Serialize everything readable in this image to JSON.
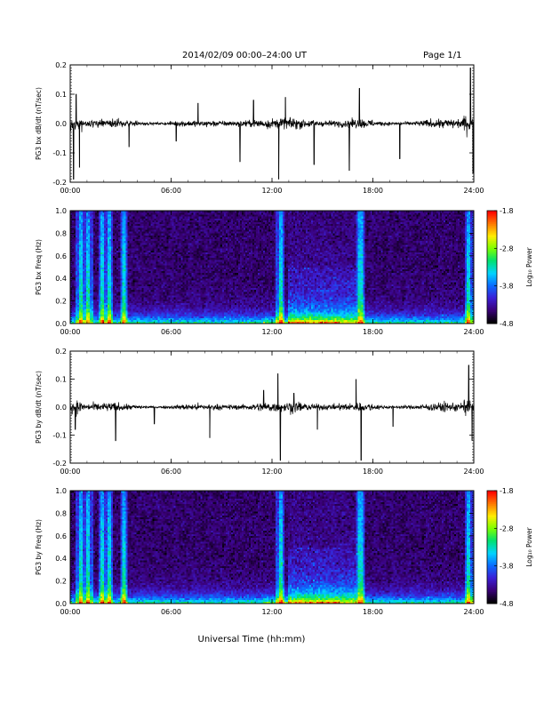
{
  "header": {
    "title": "2014/02/09  00:00–24:00 UT",
    "page": "Page 1/1"
  },
  "x_axis": {
    "label": "Universal Time (hh:mm)",
    "ticks": [
      "00:00",
      "06:00",
      "12:00",
      "18:00",
      "24:00"
    ],
    "range_hours": [
      0,
      24
    ]
  },
  "colorbar": {
    "label": "Log₁₀ Power",
    "ticks": [
      "-1.8",
      "-2.8",
      "-3.8",
      "-4.8"
    ],
    "range": [
      -4.8,
      -1.8
    ],
    "colors": [
      "#000000",
      "#3a0078",
      "#3b1fd6",
      "#0a6cff",
      "#00d4ff",
      "#00e070",
      "#7cff00",
      "#ffee00",
      "#ff7a00",
      "#ff0000"
    ]
  },
  "panels": [
    {
      "kind": "timeseries",
      "ylabel": "PG3 bx dB/dt (nT/sec)",
      "yticks": [
        "0.2",
        "0.1",
        "0.0",
        "-0.1",
        "-0.2"
      ],
      "ylim": [
        -0.2,
        0.2
      ]
    },
    {
      "kind": "spectrogram",
      "ylabel": "PG3 bx Freq (Hz)",
      "yticks": [
        "1.0",
        "0.8",
        "0.6",
        "0.4",
        "0.2",
        "0.0"
      ],
      "ylim": [
        0,
        1.0
      ]
    },
    {
      "kind": "timeseries",
      "ylabel": "PG3 by dB/dt (nT/sec)",
      "yticks": [
        "0.2",
        "0.1",
        "0.0",
        "-0.1",
        "-0.2"
      ],
      "ylim": [
        -0.2,
        0.2
      ]
    },
    {
      "kind": "spectrogram",
      "ylabel": "PG3 by Freq (Hz)",
      "yticks": [
        "1.0",
        "0.8",
        "0.6",
        "0.4",
        "0.2",
        "0.0"
      ],
      "ylim": [
        0,
        1.0
      ]
    }
  ],
  "chart_data": [
    {
      "type": "line",
      "xlabel": "Universal Time (hh:mm)",
      "ylabel": "PG3 bx dB/dt (nT/sec)",
      "xlim": [
        0,
        24
      ],
      "ylim": [
        -0.2,
        0.2
      ],
      "baseline": 0.0,
      "typical_amplitude": 0.03,
      "spikes": [
        {
          "x": 0.2,
          "y": -0.19
        },
        {
          "x": 0.35,
          "y": 0.1
        },
        {
          "x": 0.55,
          "y": -0.15
        },
        {
          "x": 3.5,
          "y": -0.08
        },
        {
          "x": 6.3,
          "y": -0.06
        },
        {
          "x": 7.6,
          "y": 0.07
        },
        {
          "x": 10.1,
          "y": -0.13
        },
        {
          "x": 10.9,
          "y": 0.08
        },
        {
          "x": 12.4,
          "y": -0.19
        },
        {
          "x": 12.8,
          "y": 0.09
        },
        {
          "x": 14.5,
          "y": -0.14
        },
        {
          "x": 16.6,
          "y": -0.16
        },
        {
          "x": 17.2,
          "y": 0.12
        },
        {
          "x": 19.6,
          "y": -0.12
        },
        {
          "x": 23.8,
          "y": 0.19
        },
        {
          "x": 23.95,
          "y": -0.17
        }
      ]
    },
    {
      "type": "heatmap",
      "xlabel": "Universal Time (hh:mm)",
      "ylabel": "PG3 bx Freq (Hz)",
      "xlim": [
        0,
        24
      ],
      "ylim": [
        0,
        1.0
      ],
      "zlabel": "Log₁₀ Power",
      "zlim": [
        -4.8,
        -1.8
      ],
      "background_power": -4.5,
      "low_freq_band_power": -3.0,
      "broadband_events_hours": [
        0.6,
        1.1,
        1.9,
        2.3,
        3.2,
        12.5,
        17.25,
        23.7
      ],
      "enhanced_interval_hours": [
        13,
        17
      ]
    },
    {
      "type": "line",
      "xlabel": "Universal Time (hh:mm)",
      "ylabel": "PG3 by dB/dt (nT/sec)",
      "xlim": [
        0,
        24
      ],
      "ylim": [
        -0.2,
        0.2
      ],
      "baseline": 0.0,
      "typical_amplitude": 0.03,
      "spikes": [
        {
          "x": 0.3,
          "y": -0.08
        },
        {
          "x": 2.7,
          "y": -0.12
        },
        {
          "x": 5.0,
          "y": -0.06
        },
        {
          "x": 8.3,
          "y": -0.11
        },
        {
          "x": 11.5,
          "y": 0.06
        },
        {
          "x": 12.35,
          "y": 0.12
        },
        {
          "x": 12.5,
          "y": -0.19
        },
        {
          "x": 13.3,
          "y": 0.05
        },
        {
          "x": 14.7,
          "y": -0.08
        },
        {
          "x": 17.0,
          "y": 0.1
        },
        {
          "x": 17.3,
          "y": -0.19
        },
        {
          "x": 19.2,
          "y": -0.07
        },
        {
          "x": 23.7,
          "y": 0.15
        },
        {
          "x": 23.9,
          "y": -0.12
        }
      ]
    },
    {
      "type": "heatmap",
      "xlabel": "Universal Time (hh:mm)",
      "ylabel": "PG3 by Freq (Hz)",
      "xlim": [
        0,
        24
      ],
      "ylim": [
        0,
        1.0
      ],
      "zlabel": "Log₁₀ Power",
      "zlim": [
        -4.8,
        -1.8
      ],
      "background_power": -4.5,
      "low_freq_band_power": -3.0,
      "broadband_events_hours": [
        0.6,
        1.1,
        1.9,
        2.3,
        3.2,
        12.5,
        17.25,
        23.7
      ],
      "enhanced_interval_hours": [
        13,
        17
      ]
    }
  ]
}
